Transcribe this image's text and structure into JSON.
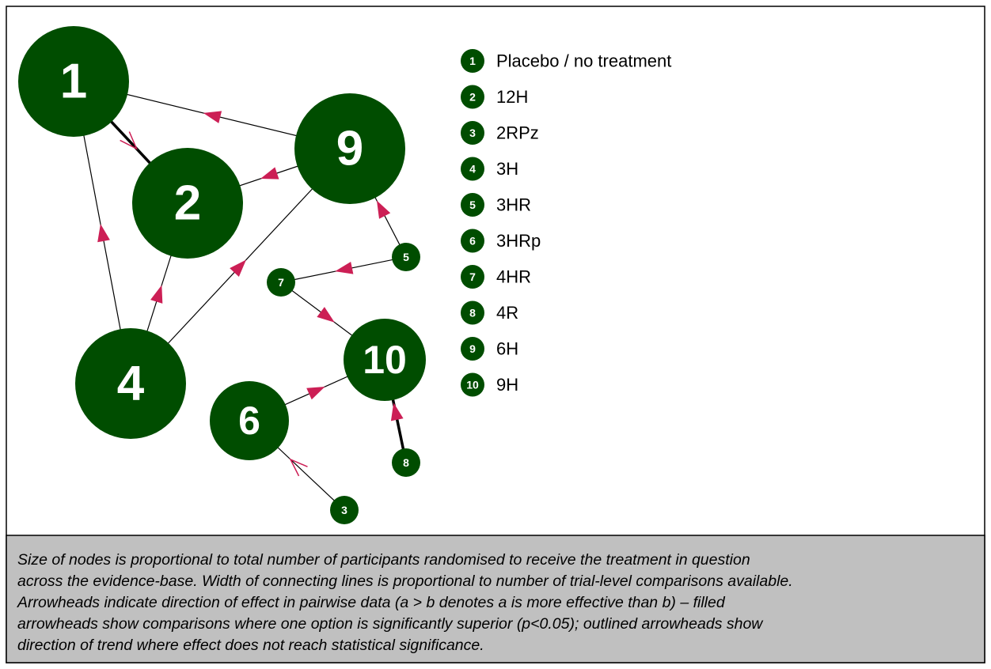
{
  "nodes": [
    {
      "id": "1",
      "name": "Placebo / no treatment"
    },
    {
      "id": "2",
      "name": "12H"
    },
    {
      "id": "3",
      "name": "2RPz"
    },
    {
      "id": "4",
      "name": "3H"
    },
    {
      "id": "5",
      "name": "3HR"
    },
    {
      "id": "6",
      "name": "3HRp"
    },
    {
      "id": "7",
      "name": "4HR"
    },
    {
      "id": "8",
      "name": "4R"
    },
    {
      "id": "9",
      "name": "6H"
    },
    {
      "id": "10",
      "name": "9H"
    }
  ],
  "caption": [
    "Size of nodes is proportional to total number of participants randomised to receive the treatment in question",
    "across the evidence-base. Width of connecting lines is proportional to number of trial-level comparisons available.",
    "Arrowheads indicate direction of effect in pairwise data (a > b denotes a is more effective than b) – filled",
    "arrowheads show comparisons where one option is significantly superior (p<0.05); outlined arrowheads show",
    "direction of trend where effect does not reach statistical significance."
  ]
}
